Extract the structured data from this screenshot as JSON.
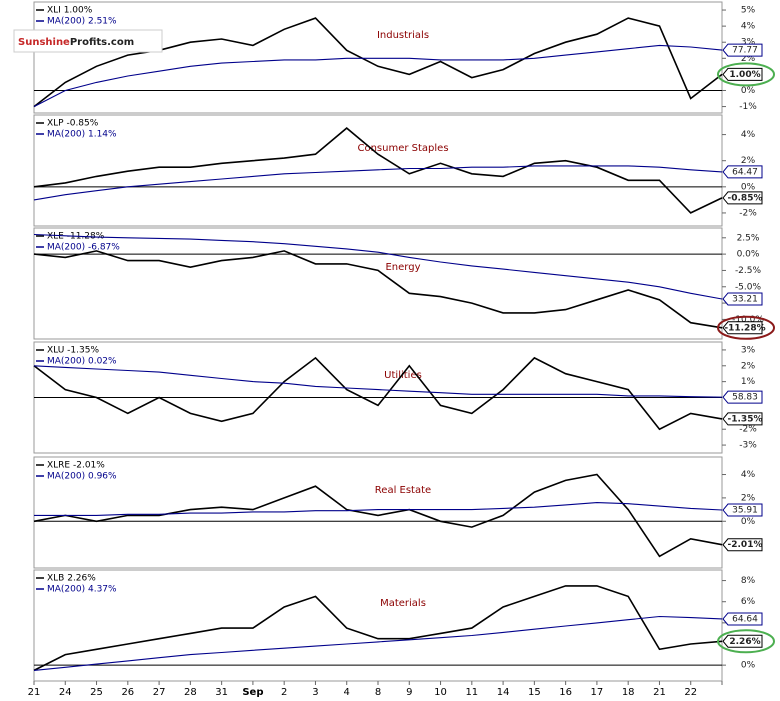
{
  "chart_data": [
    {
      "type": "line",
      "title": "Industrials",
      "watermark": {
        "brand": "Sunshine",
        "suffix": "Profits.com"
      },
      "series": [
        {
          "name": "XLI 1.00%",
          "color": "#000000",
          "value_label": "1.00%",
          "values": [
            -1.0,
            0.5,
            1.5,
            2.2,
            2.5,
            3.0,
            3.2,
            2.8,
            3.8,
            4.5,
            2.5,
            1.5,
            1.0,
            1.8,
            0.8,
            1.3,
            2.3,
            3.0,
            3.5,
            4.5,
            4.0,
            -0.5,
            1.0
          ]
        },
        {
          "name": "MA(200) 2.51%",
          "color": "#00008b",
          "price_label": "77.77",
          "values": [
            -1.0,
            0.0,
            0.5,
            0.9,
            1.2,
            1.5,
            1.7,
            1.8,
            1.9,
            1.9,
            2.0,
            2.0,
            2.0,
            1.9,
            1.9,
            1.9,
            2.0,
            2.2,
            2.4,
            2.6,
            2.8,
            2.7,
            2.51
          ]
        }
      ],
      "ylim": [
        -1.4,
        5.5
      ],
      "yticks": [
        {
          "value": -1,
          "label": "-1%"
        },
        {
          "value": 0,
          "label": "0%"
        },
        {
          "value": 2,
          "label": "2%"
        },
        {
          "value": 3,
          "label": "3%"
        },
        {
          "value": 4,
          "label": "4%"
        },
        {
          "value": 5,
          "label": "5%"
        }
      ],
      "highlight": "#4caf50"
    },
    {
      "type": "line",
      "title": "Consumer Staples",
      "series": [
        {
          "name": "XLP -0.85%",
          "color": "#000000",
          "value_label": "-0.85%",
          "values": [
            0,
            0.3,
            0.8,
            1.2,
            1.5,
            1.5,
            1.8,
            2.0,
            2.2,
            2.5,
            4.5,
            2.5,
            1.0,
            1.8,
            1.0,
            0.8,
            1.8,
            2.0,
            1.5,
            0.5,
            0.5,
            -2.0,
            -0.85
          ]
        },
        {
          "name": "MA(200) 1.14%",
          "color": "#00008b",
          "price_label": "64.47",
          "values": [
            -1.0,
            -0.6,
            -0.3,
            0,
            0.2,
            0.4,
            0.6,
            0.8,
            1.0,
            1.1,
            1.2,
            1.3,
            1.4,
            1.4,
            1.5,
            1.5,
            1.6,
            1.6,
            1.6,
            1.6,
            1.5,
            1.3,
            1.14
          ]
        }
      ],
      "ylim": [
        -3,
        5.5
      ],
      "yticks": [
        {
          "value": -2,
          "label": "-2%"
        },
        {
          "value": 0,
          "label": "0%"
        },
        {
          "value": 2,
          "label": "2%"
        },
        {
          "value": 4,
          "label": "4%"
        }
      ]
    },
    {
      "type": "line",
      "title": "Energy",
      "series": [
        {
          "name": "XLE -11.28%",
          "color": "#000000",
          "value_label": "-11.28%",
          "values": [
            0,
            -0.5,
            0.5,
            -1.0,
            -1.0,
            -2.0,
            -1.0,
            -0.5,
            0.5,
            -1.5,
            -1.5,
            -2.5,
            -6.0,
            -6.5,
            -7.5,
            -9.0,
            -9.0,
            -8.5,
            -7.0,
            -5.5,
            -7.0,
            -10.5,
            -11.28
          ]
        },
        {
          "name": "MA(200) -6.87%",
          "color": "#00008b",
          "price_label": "33.21",
          "values": [
            3.0,
            2.8,
            2.6,
            2.5,
            2.4,
            2.3,
            2.1,
            1.9,
            1.6,
            1.2,
            0.8,
            0.3,
            -0.5,
            -1.2,
            -1.8,
            -2.3,
            -2.8,
            -3.3,
            -3.8,
            -4.3,
            -5.0,
            -6.0,
            -6.87
          ]
        }
      ],
      "ylim": [
        -13,
        4
      ],
      "yticks": [
        {
          "value": -10,
          "label": "-10.0%"
        },
        {
          "value": -7.5,
          "label": "-7.5%"
        },
        {
          "value": -5,
          "label": "-5.0%"
        },
        {
          "value": -2.5,
          "label": "-2.5%"
        },
        {
          "value": 0,
          "label": "0.0%"
        },
        {
          "value": 2.5,
          "label": "2.5%"
        }
      ],
      "highlight": "#8b1a1a"
    },
    {
      "type": "line",
      "title": "Utilities",
      "series": [
        {
          "name": "XLU -1.35%",
          "color": "#000000",
          "value_label": "-1.35%",
          "values": [
            2.0,
            0.5,
            0,
            -1.0,
            0,
            -1.0,
            -1.5,
            -1.0,
            1.0,
            2.5,
            0.5,
            -0.5,
            2.0,
            -0.5,
            -1.0,
            0.5,
            2.5,
            1.5,
            1.0,
            0.5,
            -2.0,
            -1.0,
            -1.35
          ]
        },
        {
          "name": "MA(200) 0.02%",
          "color": "#00008b",
          "price_label": "58.83",
          "values": [
            2.0,
            1.9,
            1.8,
            1.7,
            1.6,
            1.4,
            1.2,
            1.0,
            0.9,
            0.7,
            0.6,
            0.5,
            0.4,
            0.3,
            0.2,
            0.2,
            0.2,
            0.2,
            0.2,
            0.1,
            0.1,
            0.05,
            0.02
          ]
        }
      ],
      "ylim": [
        -3.5,
        3.5
      ],
      "yticks": [
        {
          "value": -3,
          "label": "-3%"
        },
        {
          "value": -2,
          "label": "-2%"
        },
        {
          "value": 1,
          "label": "1%"
        },
        {
          "value": 2,
          "label": "2%"
        },
        {
          "value": 3,
          "label": "3%"
        }
      ]
    },
    {
      "type": "line",
      "title": "Real Estate",
      "series": [
        {
          "name": "XLRE -2.01%",
          "color": "#000000",
          "value_label": "-2.01%",
          "values": [
            0,
            0.5,
            0,
            0.5,
            0.5,
            1.0,
            1.2,
            1.0,
            2.0,
            3.0,
            1.0,
            0.5,
            1.0,
            0,
            -0.5,
            0.5,
            2.5,
            3.5,
            4.0,
            1.0,
            -3.0,
            -1.5,
            -2.01
          ]
        },
        {
          "name": "MA(200) 0.96%",
          "color": "#00008b",
          "price_label": "35.91",
          "values": [
            0.5,
            0.5,
            0.5,
            0.6,
            0.6,
            0.7,
            0.7,
            0.8,
            0.8,
            0.9,
            0.9,
            1.0,
            1.0,
            1.0,
            1.0,
            1.1,
            1.2,
            1.4,
            1.6,
            1.5,
            1.3,
            1.1,
            0.96
          ]
        }
      ],
      "ylim": [
        -4,
        5.5
      ],
      "yticks": [
        {
          "value": 0,
          "label": "0%"
        },
        {
          "value": 2,
          "label": "2%"
        },
        {
          "value": 4,
          "label": "4%"
        }
      ]
    },
    {
      "type": "line",
      "title": "Materials",
      "categories": [
        "21",
        "24",
        "25",
        "26",
        "27",
        "28",
        "31",
        "Sep",
        "2",
        "3",
        "4",
        "8",
        "9",
        "10",
        "11",
        "14",
        "15",
        "16",
        "17",
        "18",
        "21",
        "22",
        null
      ],
      "series": [
        {
          "name": "XLB 2.26%",
          "color": "#000000",
          "value_label": "2.26%",
          "values": [
            -0.5,
            1.0,
            1.5,
            2.0,
            2.5,
            3.0,
            3.5,
            3.5,
            5.5,
            6.5,
            3.5,
            2.5,
            2.5,
            3.0,
            3.5,
            5.5,
            6.5,
            7.5,
            7.5,
            6.5,
            1.5,
            2.0,
            2.26
          ]
        },
        {
          "name": "MA(200) 4.37%",
          "color": "#00008b",
          "price_label": "64.64",
          "values": [
            -0.5,
            -0.2,
            0.1,
            0.4,
            0.7,
            1.0,
            1.2,
            1.4,
            1.6,
            1.8,
            2.0,
            2.2,
            2.4,
            2.6,
            2.8,
            3.1,
            3.4,
            3.7,
            4.0,
            4.3,
            4.6,
            4.5,
            4.37
          ]
        }
      ],
      "ylim": [
        -1.5,
        9
      ],
      "yticks": [
        {
          "value": 0,
          "label": "0%"
        },
        {
          "value": 4,
          "label": "4%"
        },
        {
          "value": 6,
          "label": "6%"
        },
        {
          "value": 8,
          "label": "8%"
        }
      ],
      "highlight": "#4caf50"
    }
  ]
}
